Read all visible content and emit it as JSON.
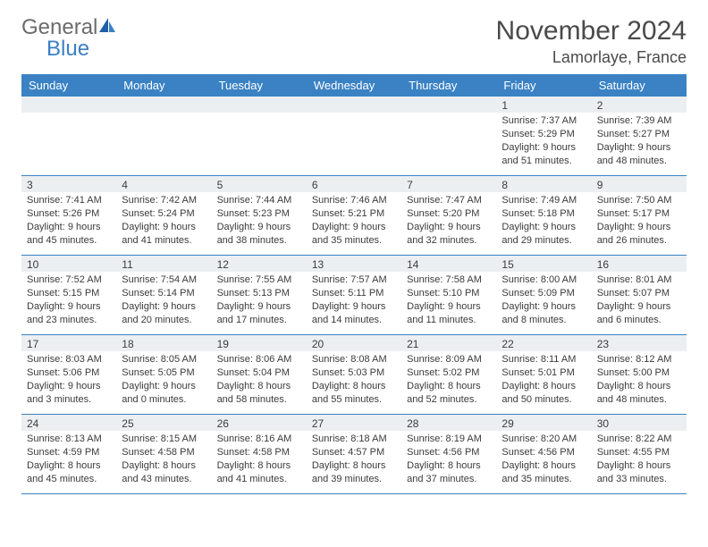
{
  "brand": {
    "word1": "General",
    "word2": "Blue"
  },
  "title": "November 2024",
  "location": "Lamorlaye, France",
  "colors": {
    "header_bg": "#3a82c4",
    "header_text": "#ffffff",
    "daynum_bg": "#eceff1",
    "text": "#3b3b3b",
    "logo_gray": "#6b6b6b",
    "logo_blue": "#3a7fc4",
    "border": "#3a82c4",
    "background": "#ffffff"
  },
  "typography": {
    "title_fontsize": 30,
    "location_fontsize": 18,
    "header_fontsize": 13,
    "cell_fontsize": 11,
    "daynum_fontsize": 12
  },
  "dayNames": [
    "Sunday",
    "Monday",
    "Tuesday",
    "Wednesday",
    "Thursday",
    "Friday",
    "Saturday"
  ],
  "weeks": [
    [
      {
        "n": "",
        "l1": "",
        "l2": "",
        "l3": "",
        "l4": ""
      },
      {
        "n": "",
        "l1": "",
        "l2": "",
        "l3": "",
        "l4": ""
      },
      {
        "n": "",
        "l1": "",
        "l2": "",
        "l3": "",
        "l4": ""
      },
      {
        "n": "",
        "l1": "",
        "l2": "",
        "l3": "",
        "l4": ""
      },
      {
        "n": "",
        "l1": "",
        "l2": "",
        "l3": "",
        "l4": ""
      },
      {
        "n": "1",
        "l1": "Sunrise: 7:37 AM",
        "l2": "Sunset: 5:29 PM",
        "l3": "Daylight: 9 hours",
        "l4": "and 51 minutes."
      },
      {
        "n": "2",
        "l1": "Sunrise: 7:39 AM",
        "l2": "Sunset: 5:27 PM",
        "l3": "Daylight: 9 hours",
        "l4": "and 48 minutes."
      }
    ],
    [
      {
        "n": "3",
        "l1": "Sunrise: 7:41 AM",
        "l2": "Sunset: 5:26 PM",
        "l3": "Daylight: 9 hours",
        "l4": "and 45 minutes."
      },
      {
        "n": "4",
        "l1": "Sunrise: 7:42 AM",
        "l2": "Sunset: 5:24 PM",
        "l3": "Daylight: 9 hours",
        "l4": "and 41 minutes."
      },
      {
        "n": "5",
        "l1": "Sunrise: 7:44 AM",
        "l2": "Sunset: 5:23 PM",
        "l3": "Daylight: 9 hours",
        "l4": "and 38 minutes."
      },
      {
        "n": "6",
        "l1": "Sunrise: 7:46 AM",
        "l2": "Sunset: 5:21 PM",
        "l3": "Daylight: 9 hours",
        "l4": "and 35 minutes."
      },
      {
        "n": "7",
        "l1": "Sunrise: 7:47 AM",
        "l2": "Sunset: 5:20 PM",
        "l3": "Daylight: 9 hours",
        "l4": "and 32 minutes."
      },
      {
        "n": "8",
        "l1": "Sunrise: 7:49 AM",
        "l2": "Sunset: 5:18 PM",
        "l3": "Daylight: 9 hours",
        "l4": "and 29 minutes."
      },
      {
        "n": "9",
        "l1": "Sunrise: 7:50 AM",
        "l2": "Sunset: 5:17 PM",
        "l3": "Daylight: 9 hours",
        "l4": "and 26 minutes."
      }
    ],
    [
      {
        "n": "10",
        "l1": "Sunrise: 7:52 AM",
        "l2": "Sunset: 5:15 PM",
        "l3": "Daylight: 9 hours",
        "l4": "and 23 minutes."
      },
      {
        "n": "11",
        "l1": "Sunrise: 7:54 AM",
        "l2": "Sunset: 5:14 PM",
        "l3": "Daylight: 9 hours",
        "l4": "and 20 minutes."
      },
      {
        "n": "12",
        "l1": "Sunrise: 7:55 AM",
        "l2": "Sunset: 5:13 PM",
        "l3": "Daylight: 9 hours",
        "l4": "and 17 minutes."
      },
      {
        "n": "13",
        "l1": "Sunrise: 7:57 AM",
        "l2": "Sunset: 5:11 PM",
        "l3": "Daylight: 9 hours",
        "l4": "and 14 minutes."
      },
      {
        "n": "14",
        "l1": "Sunrise: 7:58 AM",
        "l2": "Sunset: 5:10 PM",
        "l3": "Daylight: 9 hours",
        "l4": "and 11 minutes."
      },
      {
        "n": "15",
        "l1": "Sunrise: 8:00 AM",
        "l2": "Sunset: 5:09 PM",
        "l3": "Daylight: 9 hours",
        "l4": "and 8 minutes."
      },
      {
        "n": "16",
        "l1": "Sunrise: 8:01 AM",
        "l2": "Sunset: 5:07 PM",
        "l3": "Daylight: 9 hours",
        "l4": "and 6 minutes."
      }
    ],
    [
      {
        "n": "17",
        "l1": "Sunrise: 8:03 AM",
        "l2": "Sunset: 5:06 PM",
        "l3": "Daylight: 9 hours",
        "l4": "and 3 minutes."
      },
      {
        "n": "18",
        "l1": "Sunrise: 8:05 AM",
        "l2": "Sunset: 5:05 PM",
        "l3": "Daylight: 9 hours",
        "l4": "and 0 minutes."
      },
      {
        "n": "19",
        "l1": "Sunrise: 8:06 AM",
        "l2": "Sunset: 5:04 PM",
        "l3": "Daylight: 8 hours",
        "l4": "and 58 minutes."
      },
      {
        "n": "20",
        "l1": "Sunrise: 8:08 AM",
        "l2": "Sunset: 5:03 PM",
        "l3": "Daylight: 8 hours",
        "l4": "and 55 minutes."
      },
      {
        "n": "21",
        "l1": "Sunrise: 8:09 AM",
        "l2": "Sunset: 5:02 PM",
        "l3": "Daylight: 8 hours",
        "l4": "and 52 minutes."
      },
      {
        "n": "22",
        "l1": "Sunrise: 8:11 AM",
        "l2": "Sunset: 5:01 PM",
        "l3": "Daylight: 8 hours",
        "l4": "and 50 minutes."
      },
      {
        "n": "23",
        "l1": "Sunrise: 8:12 AM",
        "l2": "Sunset: 5:00 PM",
        "l3": "Daylight: 8 hours",
        "l4": "and 48 minutes."
      }
    ],
    [
      {
        "n": "24",
        "l1": "Sunrise: 8:13 AM",
        "l2": "Sunset: 4:59 PM",
        "l3": "Daylight: 8 hours",
        "l4": "and 45 minutes."
      },
      {
        "n": "25",
        "l1": "Sunrise: 8:15 AM",
        "l2": "Sunset: 4:58 PM",
        "l3": "Daylight: 8 hours",
        "l4": "and 43 minutes."
      },
      {
        "n": "26",
        "l1": "Sunrise: 8:16 AM",
        "l2": "Sunset: 4:58 PM",
        "l3": "Daylight: 8 hours",
        "l4": "and 41 minutes."
      },
      {
        "n": "27",
        "l1": "Sunrise: 8:18 AM",
        "l2": "Sunset: 4:57 PM",
        "l3": "Daylight: 8 hours",
        "l4": "and 39 minutes."
      },
      {
        "n": "28",
        "l1": "Sunrise: 8:19 AM",
        "l2": "Sunset: 4:56 PM",
        "l3": "Daylight: 8 hours",
        "l4": "and 37 minutes."
      },
      {
        "n": "29",
        "l1": "Sunrise: 8:20 AM",
        "l2": "Sunset: 4:56 PM",
        "l3": "Daylight: 8 hours",
        "l4": "and 35 minutes."
      },
      {
        "n": "30",
        "l1": "Sunrise: 8:22 AM",
        "l2": "Sunset: 4:55 PM",
        "l3": "Daylight: 8 hours",
        "l4": "and 33 minutes."
      }
    ]
  ]
}
